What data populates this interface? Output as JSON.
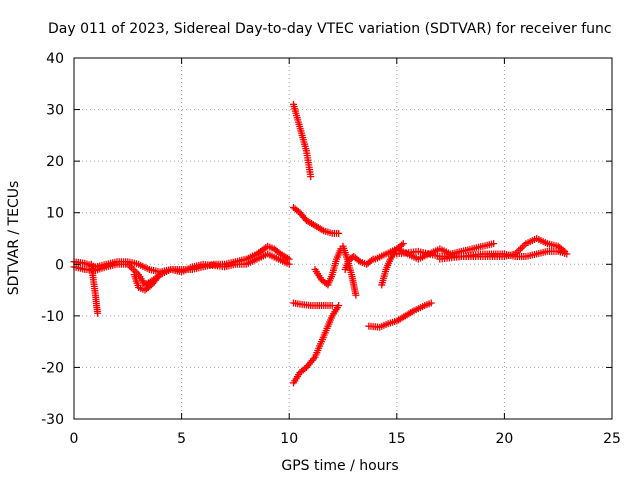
{
  "chart_data": {
    "type": "scatter",
    "title": "Day 011 of 2023, Sidereal Day-to-day VTEC variation (SDTVAR) for receiver func",
    "xlabel": "GPS time / hours",
    "ylabel": "SDTVAR / TECUs",
    "xlim": [
      0,
      25
    ],
    "ylim": [
      -30,
      40
    ],
    "xticks": [
      0,
      5,
      10,
      15,
      20,
      25
    ],
    "yticks": [
      -30,
      -20,
      -10,
      0,
      10,
      20,
      30,
      40
    ],
    "xtick_labels": [
      "0",
      "5",
      "10",
      "15",
      "20",
      "25"
    ],
    "ytick_labels": [
      "-30",
      "-20",
      "-10",
      "0",
      "10",
      "20",
      "30",
      "40"
    ],
    "grid": true,
    "marker": "plus",
    "series_color": "#ff0000",
    "series": [
      {
        "name": "main-trace-a",
        "points": [
          [
            0,
            0.5
          ],
          [
            0.5,
            0.2
          ],
          [
            1,
            -0.5
          ],
          [
            1.5,
            0
          ],
          [
            2,
            0.5
          ],
          [
            2.5,
            0.5
          ],
          [
            3,
            0
          ],
          [
            3.5,
            -1
          ],
          [
            4,
            -1.5
          ],
          [
            4.5,
            -1
          ],
          [
            5,
            -1
          ],
          [
            5.5,
            -1
          ],
          [
            6,
            -0.5
          ],
          [
            6.5,
            0
          ],
          [
            7,
            0
          ],
          [
            7.5,
            0.5
          ],
          [
            8,
            1
          ],
          [
            8.5,
            2
          ],
          [
            9,
            3.5
          ],
          [
            9.3,
            3
          ],
          [
            9.6,
            2
          ],
          [
            10,
            1
          ]
        ]
      },
      {
        "name": "main-trace-b",
        "points": [
          [
            0,
            -0.5
          ],
          [
            0.5,
            -1
          ],
          [
            1,
            -1.2
          ],
          [
            1.5,
            -0.5
          ],
          [
            2,
            0
          ],
          [
            2.5,
            0
          ],
          [
            3,
            -2
          ],
          [
            3.3,
            -4
          ],
          [
            3.7,
            -3
          ],
          [
            4,
            -2
          ],
          [
            4.5,
            -1
          ],
          [
            5,
            -1.5
          ],
          [
            5.5,
            -0.5
          ],
          [
            6,
            0
          ],
          [
            7,
            -0.5
          ],
          [
            7.5,
            0
          ],
          [
            8,
            0
          ],
          [
            8.5,
            1
          ],
          [
            9,
            2
          ],
          [
            9.5,
            1
          ],
          [
            10,
            0
          ]
        ]
      },
      {
        "name": "drop-near-1h",
        "points": [
          [
            0.8,
            0
          ],
          [
            0.9,
            -3
          ],
          [
            1,
            -6
          ],
          [
            1.05,
            -8
          ],
          [
            1.1,
            -9.5
          ]
        ]
      },
      {
        "name": "dip-2-4h",
        "points": [
          [
            2.8,
            -2
          ],
          [
            3,
            -4.5
          ],
          [
            3.3,
            -5
          ],
          [
            3.6,
            -4
          ],
          [
            3.9,
            -2.5
          ]
        ]
      },
      {
        "name": "descent-10-11h",
        "points": [
          [
            10.2,
            31
          ],
          [
            10.4,
            28
          ],
          [
            10.6,
            25
          ],
          [
            10.8,
            22
          ],
          [
            11,
            17
          ]
        ]
      },
      {
        "name": "upper-arc",
        "points": [
          [
            10.2,
            11
          ],
          [
            10.5,
            10
          ],
          [
            10.8,
            8.5
          ],
          [
            11.2,
            7.5
          ],
          [
            11.6,
            6.5
          ],
          [
            12,
            6
          ],
          [
            12.3,
            6
          ]
        ]
      },
      {
        "name": "lower-flat",
        "points": [
          [
            10.2,
            -7.5
          ],
          [
            10.6,
            -7.8
          ],
          [
            11,
            -8
          ],
          [
            11.5,
            -8
          ],
          [
            12,
            -8
          ]
        ]
      },
      {
        "name": "rise-from-minus-23",
        "points": [
          [
            10.2,
            -23
          ],
          [
            10.5,
            -21
          ],
          [
            10.8,
            -20
          ],
          [
            11.2,
            -18
          ],
          [
            11.5,
            -15
          ],
          [
            11.8,
            -12
          ],
          [
            12,
            -10
          ],
          [
            12.3,
            -8
          ]
        ]
      },
      {
        "name": "loop-near-11-12h",
        "points": [
          [
            11.2,
            -1
          ],
          [
            11.5,
            -3
          ],
          [
            11.8,
            -4
          ],
          [
            12,
            -2
          ],
          [
            12.2,
            1
          ],
          [
            12.4,
            3
          ]
        ]
      },
      {
        "name": "crossing-12-13h",
        "points": [
          [
            12.5,
            3.5
          ],
          [
            12.7,
            1
          ],
          [
            12.9,
            -2
          ],
          [
            13,
            -4
          ],
          [
            13.1,
            -6
          ]
        ]
      },
      {
        "name": "wave-12-14h",
        "points": [
          [
            12.6,
            -1
          ],
          [
            12.8,
            1
          ],
          [
            13,
            1.5
          ],
          [
            13.3,
            0.5
          ],
          [
            13.6,
            0
          ],
          [
            13.9,
            1
          ]
        ]
      },
      {
        "name": "branch-14h",
        "points": [
          [
            14.3,
            -4
          ],
          [
            14.5,
            -1
          ],
          [
            14.7,
            1
          ],
          [
            15,
            3
          ],
          [
            15.3,
            4
          ]
        ]
      },
      {
        "name": "branch-14-16h",
        "points": [
          [
            13.7,
            -12
          ],
          [
            14.2,
            -12.2
          ],
          [
            14.6,
            -11.5
          ],
          [
            15,
            -11
          ],
          [
            15.4,
            -10
          ],
          [
            15.8,
            -9
          ],
          [
            16.3,
            -8
          ],
          [
            16.6,
            -7.5
          ]
        ]
      },
      {
        "name": "right-trace-a",
        "points": [
          [
            14,
            1
          ],
          [
            14.5,
            2
          ],
          [
            15,
            3
          ],
          [
            15.5,
            2
          ],
          [
            16,
            1
          ],
          [
            16.5,
            2
          ],
          [
            17,
            3
          ],
          [
            17.5,
            2
          ],
          [
            18,
            2.5
          ],
          [
            18.5,
            3
          ],
          [
            19,
            3.5
          ],
          [
            19.5,
            4
          ]
        ]
      },
      {
        "name": "right-trace-b",
        "points": [
          [
            15,
            2
          ],
          [
            16,
            2.5
          ],
          [
            17,
            1.5
          ],
          [
            18,
            1.5
          ],
          [
            19,
            1.5
          ],
          [
            20,
            1.5
          ],
          [
            20.5,
            2
          ],
          [
            21,
            4
          ],
          [
            21.5,
            5
          ],
          [
            22,
            4
          ],
          [
            22.5,
            3.5
          ],
          [
            22.8,
            2.5
          ]
        ]
      },
      {
        "name": "right-trace-c",
        "points": [
          [
            17,
            1
          ],
          [
            18,
            1.5
          ],
          [
            19,
            2
          ],
          [
            19.5,
            2
          ],
          [
            20,
            2
          ],
          [
            20.5,
            1.5
          ],
          [
            21,
            1.5
          ],
          [
            21.5,
            2
          ],
          [
            22,
            2.5
          ],
          [
            22.5,
            2.5
          ],
          [
            22.9,
            2
          ]
        ]
      }
    ]
  }
}
